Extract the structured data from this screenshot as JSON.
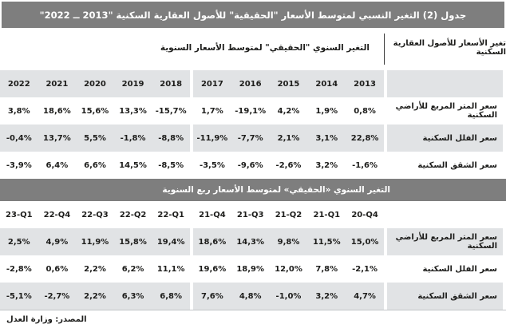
{
  "title": "جدول (2) التغير النسبي لمتوسط الأسعار \"الحقيقية\" للأصول العقارية السكنية \"2013 ــ 2022\"",
  "colors": {
    "header_bar": "#7e7e7e",
    "row_stripe": "#e1e3e5",
    "text": "#1d1d1b"
  },
  "section1": {
    "corner_header": "تغير الأسعار للأصول العقارية السكنية",
    "header": "التغير السنوي \"الحقيقي\" لمتوسط الأسعار السنوية",
    "columns": [
      "2022",
      "2021",
      "2020",
      "2019",
      "2018",
      "2017",
      "2016",
      "2015",
      "2014",
      "2013"
    ],
    "rows": [
      {
        "label": "سعر المتر المربع للأراضي السكنية",
        "values": [
          "3,8%",
          "18,6%",
          "15,6%",
          "13,3%",
          "-15,7%",
          "1,7%",
          "-19,1%",
          "4,2%",
          "1,9%",
          "0,8%"
        ]
      },
      {
        "label": "سعر الفلل السكنية",
        "values": [
          "-0,4%",
          "13,7%",
          "5,5%",
          "-1,8%",
          "-8,8%",
          "-11,9%",
          "-7,7%",
          "2,1%",
          "3,1%",
          "22,8%"
        ]
      },
      {
        "label": "سعر الشقق السكنية",
        "values": [
          "-3,9%",
          "6,4%",
          "6,6%",
          "14,5%",
          "-8,5%",
          "-3,5%",
          "-9,6%",
          "-2,6%",
          "3,2%",
          "-1,6%"
        ]
      }
    ]
  },
  "section2": {
    "header": "التغير السنوي «الحقيقي» لمتوسط الأسعار ربع السنوية",
    "columns": [
      "23-Q1",
      "22-Q4",
      "22-Q3",
      "22-Q2",
      "22-Q1",
      "21-Q4",
      "21-Q3",
      "21-Q2",
      "21-Q1",
      "20-Q4"
    ],
    "rows": [
      {
        "label": "سعر المتر المربع للأراضي السكنية",
        "values": [
          "2,5%",
          "4,9%",
          "11,9%",
          "15,8%",
          "19,4%",
          "18,6%",
          "14,3%",
          "9,8%",
          "11,5%",
          "15,0%"
        ]
      },
      {
        "label": "سعر الفلل السكنية",
        "values": [
          "-2,8%",
          "0,6%",
          "2,2%",
          "6,2%",
          "11,1%",
          "19,6%",
          "18,9%",
          "12,0%",
          "7,8%",
          "-2,1%"
        ]
      },
      {
        "label": "سعر الشقق السكنية",
        "values": [
          "-5,1%",
          "-2,7%",
          "2,2%",
          "6,3%",
          "6,8%",
          "7,6%",
          "4,8%",
          "-1,0%",
          "3,2%",
          "4,7%"
        ]
      }
    ]
  },
  "footer": {
    "source": "المصدر: وزارة العدل"
  }
}
